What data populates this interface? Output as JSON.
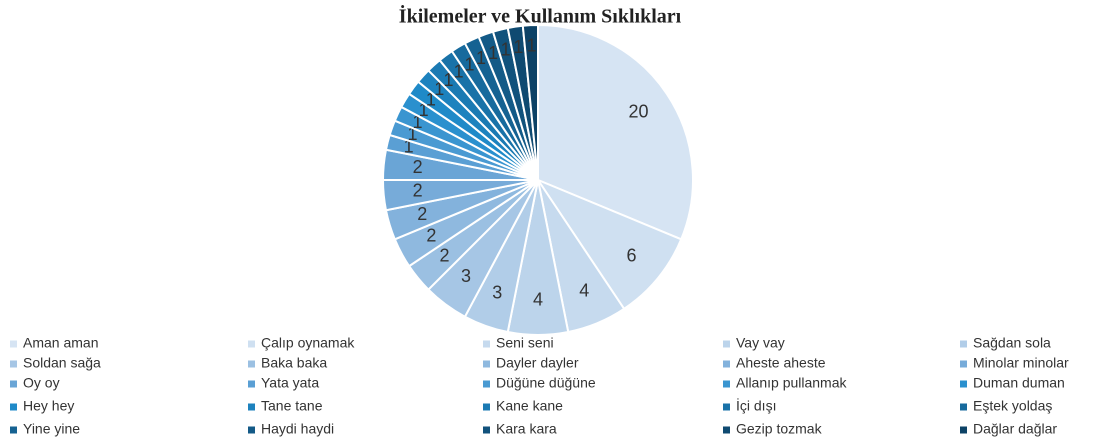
{
  "chart_data": {
    "type": "pie",
    "title": "İkilemeler ve Kullanım Sıklıkları",
    "categories": [
      "Aman aman",
      "Çalıp oynamak",
      "Seni seni",
      "Vay vay",
      "Sağdan sola",
      "Soldan sağa",
      "Baka baka",
      "Dayler dayler",
      "Aheste aheste",
      "Minolar minolar",
      "Oy oy",
      "Yata yata",
      "Düğüne düğüne",
      "Allanıp pullanmak",
      "Duman duman",
      "Hey hey",
      "Tane tane",
      "Kane kane",
      "İçi dışı",
      "Eştek yoldaş",
      "Yine yine",
      "Haydi haydi",
      "Kara kara",
      "Gezip tozmak",
      "Dağlar dağlar"
    ],
    "values": [
      20,
      6,
      4,
      4,
      3,
      3,
      2,
      2,
      2,
      2,
      2,
      1,
      1,
      1,
      1,
      1,
      1,
      1,
      1,
      1,
      1,
      1,
      1,
      1,
      1
    ],
    "colors": [
      "#d6e4f3",
      "#cfe0f1",
      "#c6daee",
      "#bcd4eb",
      "#b1cde8",
      "#a6c6e5",
      "#9bc0e2",
      "#8fb9df",
      "#83b2dc",
      "#77abd9",
      "#6aa5d6",
      "#5a9fd4",
      "#4a9ad2",
      "#3a95d0",
      "#2a90ce",
      "#1f8ac8",
      "#1d82be",
      "#1b7ab3",
      "#1972a8",
      "#176a9d",
      "#156292",
      "#135a87",
      "#11527c",
      "#0f4a71",
      "#0d4266"
    ],
    "legend": "bottom"
  }
}
